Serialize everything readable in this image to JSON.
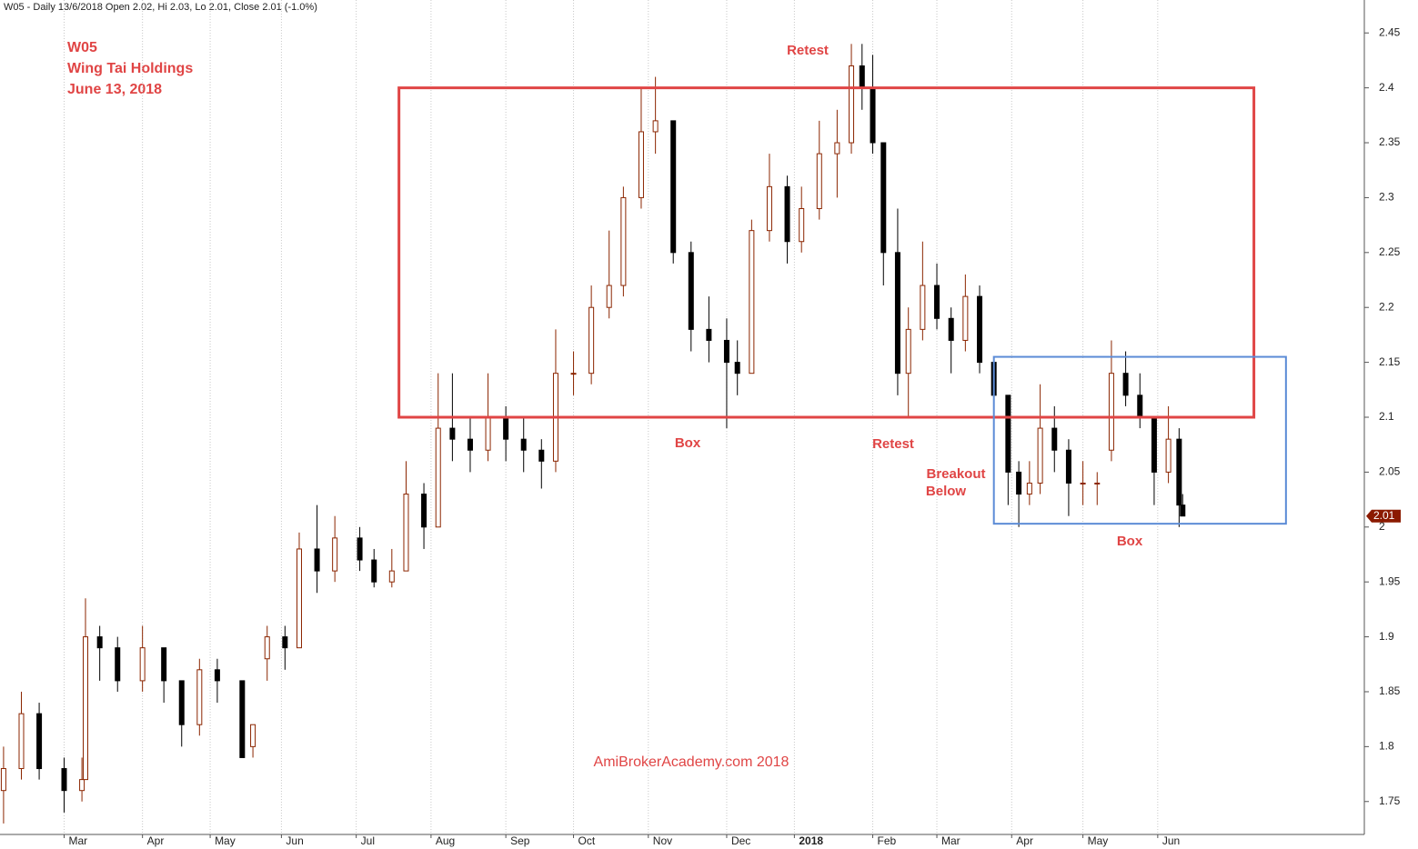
{
  "chart_data": {
    "type": "candlestick",
    "header": "W05 - Daily 13/6/2018 Open 2.02, Hi 2.03, Lo 2.01, Close 2.01 (-1.0%)",
    "title_lines": [
      "W05",
      "Wing Tai Holdings",
      "June 13, 2018"
    ],
    "watermark": "AmiBrokerAcademy.com  2018",
    "annotations": [
      "Retest",
      "Box",
      "Retest",
      "Breakout",
      "Below",
      "Box"
    ],
    "up_color": "#8b2500",
    "down_color": "#000000",
    "last_price": 2.01,
    "last_price_color": "#8b1a00",
    "boxes": [
      {
        "x_start": 111,
        "x_end": 351,
        "top": 2.4,
        "bottom": 2.1,
        "color": "#e04545"
      },
      {
        "x_start": 278,
        "x_end": 360,
        "top": 2.155,
        "bottom": 2.003,
        "color": "#5b8bd6"
      }
    ],
    "xlim": [
      -1,
      382
    ],
    "ylim": [
      1.72,
      2.48
    ],
    "yticks": [
      1.75,
      1.8,
      1.85,
      1.9,
      1.95,
      2,
      2.05,
      2.1,
      2.15,
      2.2,
      2.25,
      2.3,
      2.35,
      2.4,
      2.45
    ],
    "xticks": [
      {
        "value": 17,
        "label": "Mar"
      },
      {
        "value": 39,
        "label": "Apr"
      },
      {
        "value": 58,
        "label": "May"
      },
      {
        "value": 78,
        "label": "Jun"
      },
      {
        "value": 99,
        "label": "Jul"
      },
      {
        "value": 120,
        "label": "Aug"
      },
      {
        "value": 141,
        "label": "Sep"
      },
      {
        "value": 160,
        "label": "Oct"
      },
      {
        "value": 181,
        "label": "Nov"
      },
      {
        "value": 203,
        "label": "Dec"
      },
      {
        "value": 222,
        "label": "2018"
      },
      {
        "value": 244,
        "label": "Feb"
      },
      {
        "value": 262,
        "label": "Mar"
      },
      {
        "value": 283,
        "label": "Apr"
      },
      {
        "value": 303,
        "label": "May"
      },
      {
        "value": 324,
        "label": "Jun"
      }
    ],
    "grid": true,
    "candles": [
      {
        "x": 0,
        "open": 1.76,
        "high": 1.8,
        "low": 1.73,
        "close": 1.78
      },
      {
        "x": 5,
        "open": 1.78,
        "high": 1.85,
        "low": 1.77,
        "close": 1.83
      },
      {
        "x": 10,
        "open": 1.83,
        "high": 1.84,
        "low": 1.77,
        "close": 1.78
      },
      {
        "x": 17,
        "open": 1.78,
        "high": 1.79,
        "low": 1.74,
        "close": 1.76
      },
      {
        "x": 22,
        "open": 1.76,
        "high": 1.79,
        "low": 1.75,
        "close": 1.77
      },
      {
        "x": 23,
        "open": 1.77,
        "high": 1.935,
        "low": 1.77,
        "close": 1.9
      },
      {
        "x": 27,
        "open": 1.9,
        "high": 1.91,
        "low": 1.86,
        "close": 1.89
      },
      {
        "x": 32,
        "open": 1.89,
        "high": 1.9,
        "low": 1.85,
        "close": 1.86
      },
      {
        "x": 39,
        "open": 1.86,
        "high": 1.91,
        "low": 1.85,
        "close": 1.89
      },
      {
        "x": 45,
        "open": 1.89,
        "high": 1.89,
        "low": 1.84,
        "close": 1.86
      },
      {
        "x": 50,
        "open": 1.86,
        "high": 1.86,
        "low": 1.8,
        "close": 1.82
      },
      {
        "x": 55,
        "open": 1.82,
        "high": 1.88,
        "low": 1.81,
        "close": 1.87
      },
      {
        "x": 60,
        "open": 1.87,
        "high": 1.88,
        "low": 1.84,
        "close": 1.86
      },
      {
        "x": 67,
        "open": 1.86,
        "high": 1.86,
        "low": 1.79,
        "close": 1.79
      },
      {
        "x": 70,
        "open": 1.8,
        "high": 1.82,
        "low": 1.79,
        "close": 1.82
      },
      {
        "x": 74,
        "open": 1.88,
        "high": 1.91,
        "low": 1.86,
        "close": 1.9
      },
      {
        "x": 79,
        "open": 1.9,
        "high": 1.91,
        "low": 1.87,
        "close": 1.89
      },
      {
        "x": 83,
        "open": 1.89,
        "high": 1.995,
        "low": 1.89,
        "close": 1.98
      },
      {
        "x": 88,
        "open": 1.98,
        "high": 2.02,
        "low": 1.94,
        "close": 1.96
      },
      {
        "x": 93,
        "open": 1.96,
        "high": 2.01,
        "low": 1.95,
        "close": 1.99
      },
      {
        "x": 100,
        "open": 1.99,
        "high": 2.0,
        "low": 1.96,
        "close": 1.97
      },
      {
        "x": 104,
        "open": 1.97,
        "high": 1.98,
        "low": 1.945,
        "close": 1.95
      },
      {
        "x": 109,
        "open": 1.95,
        "high": 1.98,
        "low": 1.945,
        "close": 1.96
      },
      {
        "x": 113,
        "open": 1.96,
        "high": 2.06,
        "low": 1.96,
        "close": 2.03
      },
      {
        "x": 118,
        "open": 2.03,
        "high": 2.04,
        "low": 1.98,
        "close": 2.0
      },
      {
        "x": 122,
        "open": 2.0,
        "high": 2.14,
        "low": 2.0,
        "close": 2.09
      },
      {
        "x": 126,
        "open": 2.09,
        "high": 2.14,
        "low": 2.06,
        "close": 2.08
      },
      {
        "x": 131,
        "open": 2.08,
        "high": 2.1,
        "low": 2.05,
        "close": 2.07
      },
      {
        "x": 136,
        "open": 2.07,
        "high": 2.14,
        "low": 2.06,
        "close": 2.1
      },
      {
        "x": 141,
        "open": 2.1,
        "high": 2.11,
        "low": 2.06,
        "close": 2.08
      },
      {
        "x": 146,
        "open": 2.08,
        "high": 2.1,
        "low": 2.05,
        "close": 2.07
      },
      {
        "x": 151,
        "open": 2.07,
        "high": 2.08,
        "low": 2.035,
        "close": 2.06
      },
      {
        "x": 155,
        "open": 2.06,
        "high": 2.18,
        "low": 2.05,
        "close": 2.14
      },
      {
        "x": 160,
        "open": 2.14,
        "high": 2.16,
        "low": 2.12,
        "close": 2.14
      },
      {
        "x": 165,
        "open": 2.14,
        "high": 2.22,
        "low": 2.13,
        "close": 2.2
      },
      {
        "x": 170,
        "open": 2.2,
        "high": 2.27,
        "low": 2.19,
        "close": 2.22
      },
      {
        "x": 174,
        "open": 2.22,
        "high": 2.31,
        "low": 2.21,
        "close": 2.3
      },
      {
        "x": 179,
        "open": 2.3,
        "high": 2.4,
        "low": 2.29,
        "close": 2.36
      },
      {
        "x": 183,
        "open": 2.36,
        "high": 2.41,
        "low": 2.34,
        "close": 2.37
      },
      {
        "x": 188,
        "open": 2.37,
        "high": 2.37,
        "low": 2.24,
        "close": 2.25
      },
      {
        "x": 193,
        "open": 2.25,
        "high": 2.26,
        "low": 2.16,
        "close": 2.18
      },
      {
        "x": 198,
        "open": 2.18,
        "high": 2.21,
        "low": 2.15,
        "close": 2.17
      },
      {
        "x": 203,
        "open": 2.17,
        "high": 2.19,
        "low": 2.09,
        "close": 2.15
      },
      {
        "x": 206,
        "open": 2.15,
        "high": 2.17,
        "low": 2.12,
        "close": 2.14
      },
      {
        "x": 210,
        "open": 2.14,
        "high": 2.28,
        "low": 2.14,
        "close": 2.27
      },
      {
        "x": 215,
        "open": 2.27,
        "high": 2.34,
        "low": 2.26,
        "close": 2.31
      },
      {
        "x": 220,
        "open": 2.31,
        "high": 2.32,
        "low": 2.24,
        "close": 2.26
      },
      {
        "x": 224,
        "open": 2.26,
        "high": 2.31,
        "low": 2.25,
        "close": 2.29
      },
      {
        "x": 229,
        "open": 2.29,
        "high": 2.37,
        "low": 2.28,
        "close": 2.34
      },
      {
        "x": 234,
        "open": 2.34,
        "high": 2.38,
        "low": 2.3,
        "close": 2.35
      },
      {
        "x": 238,
        "open": 2.35,
        "high": 2.44,
        "low": 2.34,
        "close": 2.42
      },
      {
        "x": 241,
        "open": 2.42,
        "high": 2.44,
        "low": 2.38,
        "close": 2.4
      },
      {
        "x": 244,
        "open": 2.4,
        "high": 2.43,
        "low": 2.34,
        "close": 2.35
      },
      {
        "x": 247,
        "open": 2.35,
        "high": 2.35,
        "low": 2.22,
        "close": 2.25
      },
      {
        "x": 251,
        "open": 2.25,
        "high": 2.29,
        "low": 2.12,
        "close": 2.14
      },
      {
        "x": 254,
        "open": 2.14,
        "high": 2.2,
        "low": 2.1,
        "close": 2.18
      },
      {
        "x": 258,
        "open": 2.18,
        "high": 2.26,
        "low": 2.17,
        "close": 2.22
      },
      {
        "x": 262,
        "open": 2.22,
        "high": 2.24,
        "low": 2.18,
        "close": 2.19
      },
      {
        "x": 266,
        "open": 2.19,
        "high": 2.2,
        "low": 2.14,
        "close": 2.17
      },
      {
        "x": 270,
        "open": 2.17,
        "high": 2.23,
        "low": 2.16,
        "close": 2.21
      },
      {
        "x": 274,
        "open": 2.21,
        "high": 2.22,
        "low": 2.14,
        "close": 2.15
      },
      {
        "x": 278,
        "open": 2.15,
        "high": 2.15,
        "low": 2.11,
        "close": 2.12
      },
      {
        "x": 282,
        "open": 2.12,
        "high": 2.12,
        "low": 2.02,
        "close": 2.05
      },
      {
        "x": 285,
        "open": 2.05,
        "high": 2.06,
        "low": 2.0,
        "close": 2.03
      },
      {
        "x": 288,
        "open": 2.03,
        "high": 2.06,
        "low": 2.02,
        "close": 2.04
      },
      {
        "x": 291,
        "open": 2.04,
        "high": 2.13,
        "low": 2.03,
        "close": 2.09
      },
      {
        "x": 295,
        "open": 2.09,
        "high": 2.11,
        "low": 2.05,
        "close": 2.07
      },
      {
        "x": 299,
        "open": 2.07,
        "high": 2.08,
        "low": 2.01,
        "close": 2.04
      },
      {
        "x": 303,
        "open": 2.04,
        "high": 2.06,
        "low": 2.02,
        "close": 2.04
      },
      {
        "x": 307,
        "open": 2.04,
        "high": 2.05,
        "low": 2.02,
        "close": 2.04
      },
      {
        "x": 311,
        "open": 2.07,
        "high": 2.17,
        "low": 2.06,
        "close": 2.14
      },
      {
        "x": 315,
        "open": 2.14,
        "high": 2.16,
        "low": 2.11,
        "close": 2.12
      },
      {
        "x": 319,
        "open": 2.12,
        "high": 2.14,
        "low": 2.09,
        "close": 2.1
      },
      {
        "x": 323,
        "open": 2.1,
        "high": 2.1,
        "low": 2.02,
        "close": 2.05
      },
      {
        "x": 327,
        "open": 2.05,
        "high": 2.11,
        "low": 2.04,
        "close": 2.08
      },
      {
        "x": 330,
        "open": 2.08,
        "high": 2.09,
        "low": 2.0,
        "close": 2.02
      },
      {
        "x": 331,
        "open": 2.02,
        "high": 2.03,
        "low": 2.01,
        "close": 2.01
      }
    ]
  }
}
